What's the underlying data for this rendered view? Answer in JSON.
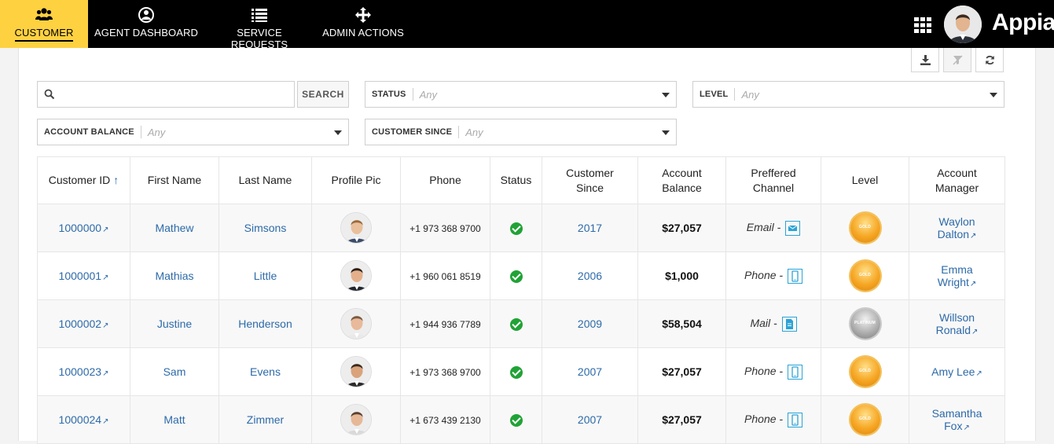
{
  "nav": {
    "items": [
      {
        "label": "CUSTOMER",
        "icon": "users-icon",
        "active": true
      },
      {
        "label": "AGENT DASHBOARD",
        "icon": "speedometer-icon"
      },
      {
        "label": "SERVICE REQUESTS",
        "icon": "list-icon"
      },
      {
        "label": "ADMIN ACTIONS",
        "icon": "move-arrows-icon"
      }
    ],
    "logo": "Appian"
  },
  "toolbar": {
    "download": "download-icon",
    "clear_filters": "filter-clear-icon",
    "refresh": "refresh-icon"
  },
  "filters": {
    "search_value": "",
    "search_button": "SEARCH",
    "status": {
      "label": "STATUS",
      "value": "Any"
    },
    "level": {
      "label": "LEVEL",
      "value": "Any"
    },
    "account_balance": {
      "label": "ACCOUNT BALANCE",
      "value": "Any"
    },
    "customer_since": {
      "label": "CUSTOMER SINCE",
      "value": "Any"
    }
  },
  "table": {
    "headers": {
      "customer_id": "Customer ID",
      "first_name": "First Name",
      "last_name": "Last Name",
      "profile_pic": "Profile Pic",
      "phone": "Phone",
      "status": "Status",
      "customer_since_1": "Customer",
      "customer_since_2": "Since",
      "account_balance_1": "Account",
      "account_balance_2": "Balance",
      "channel_1": "Preffered",
      "channel_2": "Channel",
      "level": "Level",
      "manager_1": "Account",
      "manager_2": "Manager"
    },
    "sort_indicator": "↑",
    "rows": [
      {
        "id": "1000000",
        "first": "Mathew",
        "last": "Simsons",
        "phone": "+1 973 368 9700",
        "since": "2017",
        "balance": "$27,057",
        "channel": "Email - ",
        "channel_icon": "email-icon",
        "level": "GOLD",
        "manager_1": "Waylon",
        "manager_2": "Dalton"
      },
      {
        "id": "1000001",
        "first": "Mathias",
        "last": "Little",
        "phone": "+1 960 061 8519",
        "since": "2006",
        "balance": "$1,000",
        "channel": "Phone - ",
        "channel_icon": "phone-icon",
        "level": "GOLD",
        "manager_1": "Emma",
        "manager_2": "Wright"
      },
      {
        "id": "1000002",
        "first": "Justine",
        "last": "Henderson",
        "phone": "+1 944 936 7789",
        "since": "2009",
        "balance": "$58,504",
        "channel": "Mail - ",
        "channel_icon": "mail-document-icon",
        "level": "PLATINUM",
        "manager_1": "Willson",
        "manager_2": "Ronald"
      },
      {
        "id": "1000023",
        "first": "Sam",
        "last": "Evens",
        "phone": "+1 973 368 9700",
        "since": "2007",
        "balance": "$27,057",
        "channel": "Phone - ",
        "channel_icon": "phone-icon",
        "level": "GOLD",
        "manager_1": "Amy Lee",
        "manager_2": ""
      },
      {
        "id": "1000024",
        "first": "Matt",
        "last": "Zimmer",
        "phone": "+1 673 439 2130",
        "since": "2007",
        "balance": "$27,057",
        "channel": "Phone - ",
        "channel_icon": "phone-icon",
        "level": "GOLD",
        "manager_1": "Samantha",
        "manager_2": "Fox"
      }
    ]
  },
  "colors": {
    "topbar": "#000000",
    "accent": "#fed141",
    "link": "#2d6aa8",
    "status_ok": "#21a236",
    "channel_icon": "#2ba3d6"
  }
}
